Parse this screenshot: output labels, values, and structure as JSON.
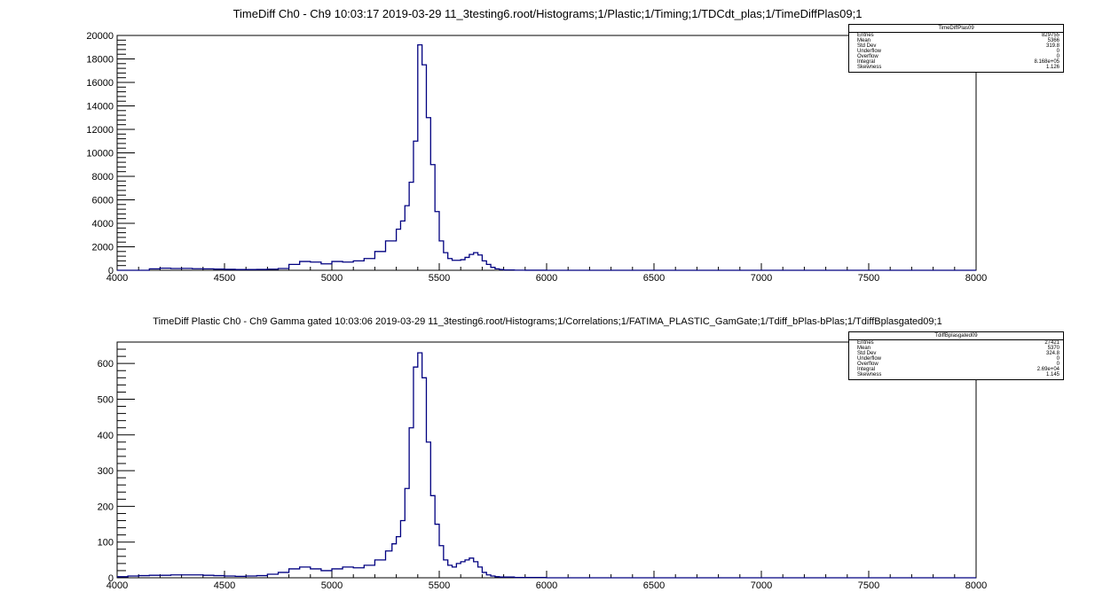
{
  "panels": [
    {
      "title": "TimeDiff Ch0 - Ch9  10:03:17  2019-03-29  11_3testing6.root/Histograms;1/Plastic;1/Timing;1/TDCdt_plas;1/TimeDiffPlas09;1",
      "stats": {
        "name": "TimeDiffPlas09",
        "rows": [
          {
            "label": "Entries",
            "value": "829755"
          },
          {
            "label": "Mean",
            "value": "5366"
          },
          {
            "label": "Std Dev",
            "value": "319.8"
          },
          {
            "label": "Underflow",
            "value": "0"
          },
          {
            "label": "Overflow",
            "value": "0"
          },
          {
            "label": "Integral",
            "value": "8.168e+05"
          },
          {
            "label": "Skewness",
            "value": "1.126"
          }
        ]
      }
    },
    {
      "title": "TimeDiff Plastic Ch0 - Ch9 Gamma gated  10:03:06  2019-03-29  11_3testing6.root/Histograms;1/Correlations;1/FATIMA_PLASTIC_GamGate;1/Tdiff_bPlas-bPlas;1/TdiffBplasgated09;1",
      "stats": {
        "name": "TdiffBplasgated09",
        "rows": [
          {
            "label": "Entries",
            "value": "27421"
          },
          {
            "label": "Mean",
            "value": "5370"
          },
          {
            "label": "Std Dev",
            "value": "324.8"
          },
          {
            "label": "Underflow",
            "value": "0"
          },
          {
            "label": "Overflow",
            "value": "0"
          },
          {
            "label": "Integral",
            "value": "2.69e+04"
          },
          {
            "label": "Skewness",
            "value": "1.145"
          }
        ]
      }
    }
  ],
  "chart_data": [
    {
      "type": "line",
      "title": "TimeDiff Ch0 - Ch9  10:03:17  2019-03-29  11_3testing6.root/Histograms;1/Plastic;1/Timing;1/TDCdt_plas;1/TimeDiffPlas09;1",
      "xlabel": "",
      "ylabel": "",
      "xlim": [
        4000,
        8000
      ],
      "ylim": [
        0,
        20000
      ],
      "xticks": [
        "4000",
        "4500",
        "5000",
        "5500",
        "6000",
        "6500",
        "7000",
        "7500",
        "8000"
      ],
      "yticks": [
        "0",
        "2000",
        "4000",
        "6000",
        "8000",
        "10000",
        "12000",
        "14000",
        "16000",
        "18000",
        "20000"
      ],
      "color": "#000080",
      "x": [
        4000,
        4050,
        4100,
        4150,
        4200,
        4250,
        4300,
        4350,
        4400,
        4450,
        4500,
        4550,
        4600,
        4650,
        4700,
        4750,
        4800,
        4850,
        4900,
        4950,
        5000,
        5050,
        5100,
        5150,
        5200,
        5250,
        5300,
        5320,
        5340,
        5360,
        5380,
        5400,
        5420,
        5440,
        5460,
        5480,
        5500,
        5520,
        5540,
        5560,
        5580,
        5600,
        5620,
        5640,
        5660,
        5680,
        5700,
        5720,
        5740,
        5760,
        5780,
        5800,
        5850,
        5900,
        5950,
        6000,
        6100,
        6200,
        6400,
        6600,
        6800,
        7000,
        7500,
        8000
      ],
      "values": [
        0,
        0,
        0,
        120,
        180,
        150,
        160,
        130,
        120,
        100,
        80,
        60,
        60,
        70,
        90,
        150,
        500,
        750,
        700,
        550,
        750,
        700,
        800,
        1000,
        1600,
        2500,
        3500,
        4200,
        5500,
        7500,
        11000,
        19200,
        17500,
        13000,
        9000,
        5000,
        2500,
        1500,
        1000,
        850,
        850,
        900,
        1100,
        1350,
        1500,
        1300,
        800,
        500,
        250,
        120,
        60,
        30,
        10,
        5,
        3,
        2,
        0,
        0,
        0,
        0,
        0,
        0,
        0,
        0
      ]
    },
    {
      "type": "line",
      "title": "TimeDiff Plastic Ch0 - Ch9 Gamma gated  10:03:06  2019-03-29  11_3testing6.root/Histograms;1/Correlations;1/FATIMA_PLASTIC_GamGate;1/Tdiff_bPlas-bPlas;1/TdiffBplasgated09;1",
      "xlabel": "",
      "ylabel": "",
      "xlim": [
        4000,
        8000
      ],
      "ylim": [
        0,
        660
      ],
      "xticks": [
        "4000",
        "4500",
        "5000",
        "5500",
        "6000",
        "6500",
        "7000",
        "7500",
        "8000"
      ],
      "yticks": [
        "0",
        "100",
        "200",
        "300",
        "400",
        "500",
        "600"
      ],
      "color": "#000080",
      "x": [
        4000,
        4050,
        4100,
        4150,
        4200,
        4250,
        4300,
        4350,
        4400,
        4450,
        4500,
        4550,
        4600,
        4650,
        4700,
        4750,
        4800,
        4850,
        4900,
        4950,
        5000,
        5050,
        5100,
        5150,
        5200,
        5250,
        5280,
        5300,
        5320,
        5340,
        5360,
        5380,
        5400,
        5420,
        5440,
        5460,
        5480,
        5500,
        5520,
        5540,
        5560,
        5580,
        5600,
        5620,
        5640,
        5660,
        5680,
        5700,
        5720,
        5740,
        5760,
        5780,
        5800,
        5850,
        5900,
        5950,
        6000,
        6100,
        6200,
        6400,
        6600,
        6800,
        7000,
        7500,
        8000
      ],
      "values": [
        3,
        5,
        6,
        7,
        7,
        8,
        8,
        8,
        7,
        6,
        5,
        4,
        5,
        6,
        10,
        15,
        25,
        30,
        25,
        20,
        25,
        30,
        28,
        35,
        50,
        75,
        95,
        115,
        160,
        250,
        420,
        590,
        630,
        560,
        380,
        230,
        150,
        90,
        50,
        35,
        30,
        40,
        45,
        50,
        55,
        45,
        30,
        15,
        8,
        5,
        3,
        2,
        2,
        1,
        1,
        1,
        0,
        0,
        0,
        0,
        0,
        0,
        0,
        0,
        0
      ]
    }
  ]
}
